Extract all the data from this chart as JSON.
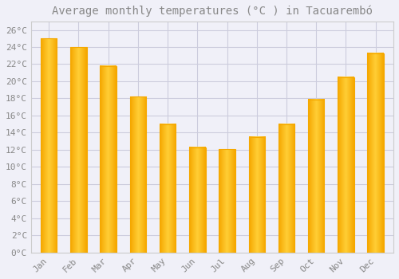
{
  "title": "Average monthly temperatures (°C ) in Tacuarembó",
  "months": [
    "Jan",
    "Feb",
    "Mar",
    "Apr",
    "May",
    "Jun",
    "Jul",
    "Aug",
    "Sep",
    "Oct",
    "Nov",
    "Dec"
  ],
  "values": [
    25.0,
    24.0,
    21.8,
    18.2,
    15.0,
    12.3,
    12.1,
    13.5,
    15.0,
    17.9,
    20.5,
    23.3
  ],
  "bar_color_center": "#FFCC33",
  "bar_color_edge": "#F5A800",
  "background_color": "#F0F0F8",
  "plot_bg_color": "#F0F0F8",
  "grid_color": "#CCCCDD",
  "text_color": "#888888",
  "border_color": "#CCCCCC",
  "ylim": [
    0,
    27
  ],
  "yticks": [
    0,
    2,
    4,
    6,
    8,
    10,
    12,
    14,
    16,
    18,
    20,
    22,
    24,
    26
  ],
  "title_fontsize": 10,
  "tick_fontsize": 8,
  "bar_width": 0.55
}
